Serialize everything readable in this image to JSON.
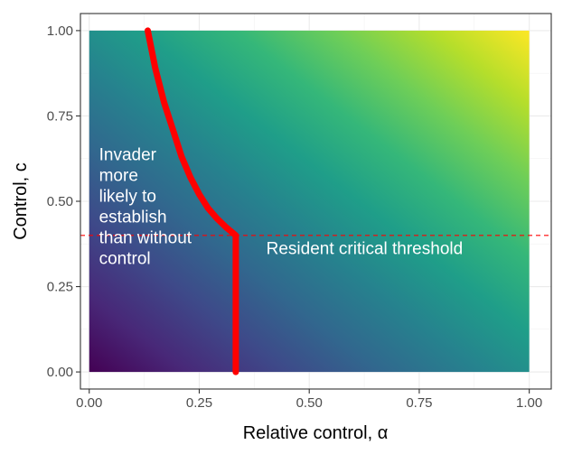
{
  "chart_data": {
    "type": "heatmap",
    "title": "",
    "xlabel": "Relative control, α",
    "ylabel": "Control, c",
    "xlim": [
      -0.02,
      1.05
    ],
    "ylim": [
      -0.05,
      1.05
    ],
    "grid": true,
    "x_ticks": [
      0.0,
      0.25,
      0.5,
      0.75,
      1.0
    ],
    "x_tick_labels": [
      "0.00",
      "0.25",
      "0.50",
      "0.75",
      "1.00"
    ],
    "y_ticks": [
      0.0,
      0.25,
      0.5,
      0.75,
      1.0
    ],
    "y_tick_labels": [
      "0.00",
      "0.25",
      "0.50",
      "0.75",
      "1.00"
    ],
    "fill_domain": {
      "x": [
        0.0,
        1.0
      ],
      "y": [
        0.0,
        1.0
      ]
    },
    "colormap": "viridis",
    "colormap_stops": [
      "#440154",
      "#482878",
      "#3e4989",
      "#31688e",
      "#26828e",
      "#1f9e89",
      "#35b779",
      "#6ece58",
      "#b5de2b",
      "#fde725"
    ],
    "boundary_curve": {
      "color": "#ff0000",
      "points": [
        {
          "x": 0.133,
          "y": 1.0
        },
        {
          "x": 0.15,
          "y": 0.89
        },
        {
          "x": 0.17,
          "y": 0.79
        },
        {
          "x": 0.19,
          "y": 0.71
        },
        {
          "x": 0.21,
          "y": 0.63
        },
        {
          "x": 0.23,
          "y": 0.57
        },
        {
          "x": 0.25,
          "y": 0.52
        },
        {
          "x": 0.27,
          "y": 0.48
        },
        {
          "x": 0.29,
          "y": 0.45
        },
        {
          "x": 0.31,
          "y": 0.425
        },
        {
          "x": 0.333,
          "y": 0.4
        },
        {
          "x": 0.333,
          "y": 0.2
        },
        {
          "x": 0.333,
          "y": 0.0
        }
      ]
    },
    "threshold_line": {
      "y": 0.4,
      "color": "#ff0000",
      "style": "dashed"
    },
    "annotations": [
      {
        "lines": [
          "Invader",
          "more",
          "likely to",
          "establish",
          "than without",
          "control"
        ],
        "x": 0.01,
        "y": 0.62
      },
      {
        "lines": [
          "Resident critical threshold"
        ],
        "x": 0.39,
        "y": 0.345
      }
    ]
  }
}
